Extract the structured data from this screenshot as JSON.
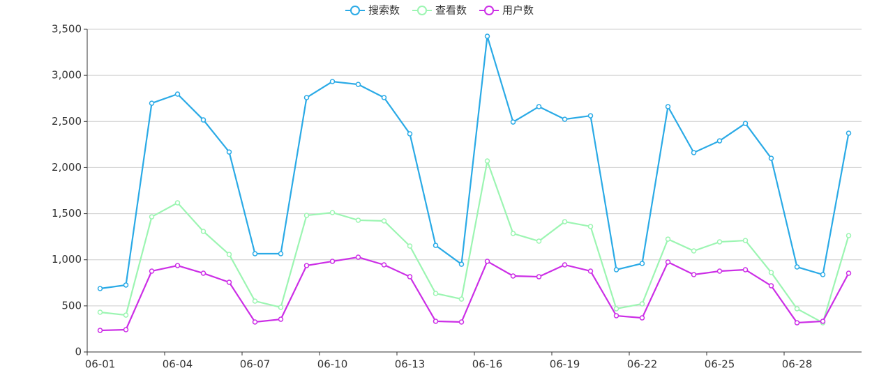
{
  "chart_data": {
    "type": "line",
    "categories": [
      "06-01",
      null,
      null,
      "06-04",
      null,
      null,
      "06-07",
      null,
      null,
      "06-10",
      null,
      null,
      "06-13",
      null,
      null,
      "06-16",
      null,
      null,
      "06-19",
      null,
      null,
      "06-22",
      null,
      null,
      "06-25",
      null,
      null,
      "06-28",
      null,
      null
    ],
    "series": [
      {
        "name": "搜索数",
        "color": "#2aaae6",
        "values": [
          688,
          726,
          2698,
          2797,
          2517,
          2169,
          1066,
          1066,
          2759,
          2933,
          2902,
          2759,
          2366,
          1156,
          952,
          3424,
          2494,
          2661,
          2524,
          2562,
          892,
          960,
          2661,
          2162,
          2290,
          2479,
          2101,
          922,
          839,
          2373
        ]
      },
      {
        "name": "查看数",
        "color": "#9cf5b2",
        "values": [
          431,
          400,
          1466,
          1618,
          1308,
          1058,
          552,
          484,
          1481,
          1512,
          1429,
          1421,
          1149,
          635,
          574,
          2071,
          1285,
          1202,
          1413,
          1361,
          469,
          522,
          1224,
          1096,
          1194,
          1209,
          862,
          469,
          317,
          1262
        ]
      },
      {
        "name": "用户数",
        "color": "#cc2ee6",
        "values": [
          234,
          242,
          877,
          937,
          854,
          756,
          325,
          355,
          937,
          983,
          1028,
          945,
          816,
          333,
          325,
          983,
          824,
          816,
          945,
          877,
          393,
          370,
          975,
          839,
          877,
          892,
          718,
          317,
          333,
          854
        ]
      }
    ],
    "ylim": [
      0,
      3500
    ],
    "yticks": [
      0,
      {
        "value": 500,
        "label": "500"
      },
      {
        "value": 1000,
        "label": "1,000"
      },
      {
        "value": 1500,
        "label": "1,500"
      },
      {
        "value": 2000,
        "label": "2,000"
      },
      {
        "value": 2500,
        "label": "2,500"
      },
      {
        "value": 3000,
        "label": "3,000"
      },
      {
        "value": 3500,
        "label": "3,500"
      }
    ],
    "grid": true
  }
}
